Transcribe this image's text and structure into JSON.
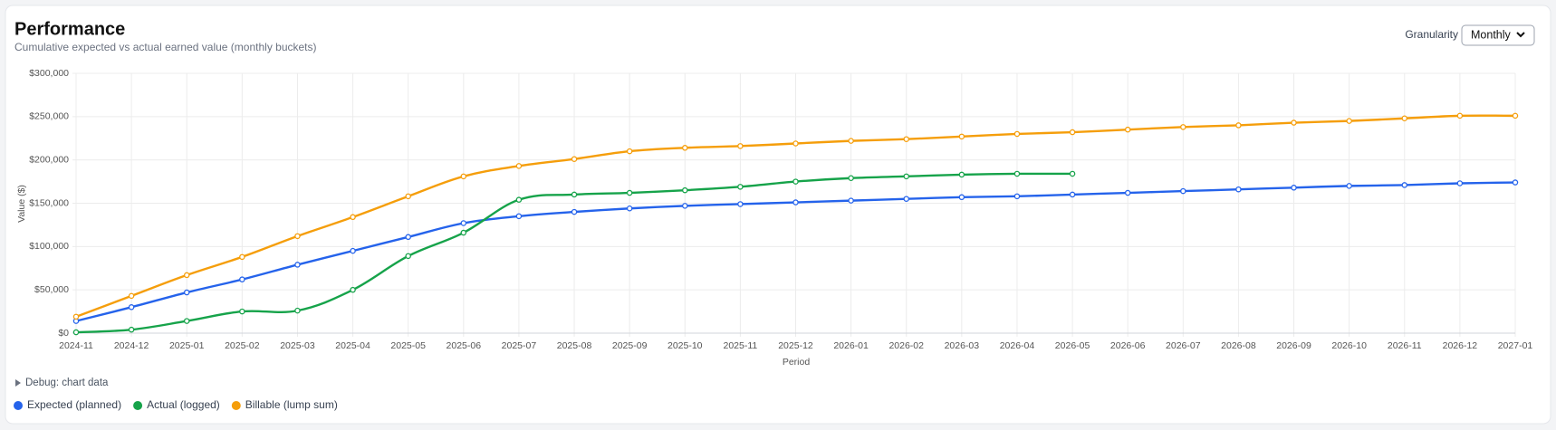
{
  "chart_data": {
    "type": "line",
    "title": "Performance",
    "subtitle": "Cumulative expected vs actual earned value (monthly buckets)",
    "x_label": "Period",
    "y_label": "Value ($)",
    "categories": [
      "2024-11",
      "2024-12",
      "2025-01",
      "2025-02",
      "2025-03",
      "2025-04",
      "2025-05",
      "2025-06",
      "2025-07",
      "2025-08",
      "2025-09",
      "2025-10",
      "2025-11",
      "2025-12",
      "2026-01",
      "2026-02",
      "2026-03",
      "2026-04",
      "2026-05",
      "2026-06",
      "2026-07",
      "2026-08",
      "2026-09",
      "2026-10",
      "2026-11",
      "2026-12",
      "2027-01"
    ],
    "series": [
      {
        "name": "Expected (planned)",
        "color": "#2563eb",
        "values": [
          14000,
          30000,
          47000,
          62000,
          79000,
          95000,
          111000,
          127000,
          135000,
          140000,
          144000,
          147000,
          149000,
          151000,
          153000,
          155000,
          157000,
          158000,
          160000,
          162000,
          164000,
          166000,
          168000,
          170000,
          171000,
          173000,
          174000
        ]
      },
      {
        "name": "Actual (logged)",
        "color": "#16a34a",
        "values": [
          1000,
          4000,
          14000,
          25000,
          26000,
          50000,
          89000,
          116000,
          154000,
          160000,
          162000,
          165000,
          169000,
          175000,
          179000,
          181000,
          183000,
          184000,
          184000,
          null,
          null,
          null,
          null,
          null,
          null,
          null,
          null
        ]
      },
      {
        "name": "Billable (lump sum)",
        "color": "#f59e0b",
        "values": [
          19000,
          43000,
          67000,
          88000,
          112000,
          134000,
          158000,
          181000,
          193000,
          201000,
          210000,
          214000,
          216000,
          219000,
          222000,
          224000,
          227000,
          230000,
          232000,
          235000,
          238000,
          240000,
          243000,
          245000,
          248000,
          251000,
          251000
        ]
      }
    ],
    "ylim": [
      0,
      300000
    ],
    "yticks": [
      {
        "value": 0,
        "label": "$0"
      },
      {
        "value": 50000,
        "label": "$50,000"
      },
      {
        "value": 100000,
        "label": "$100,000"
      },
      {
        "value": 150000,
        "label": "$150,000"
      },
      {
        "value": 200000,
        "label": "$200,000"
      },
      {
        "value": 250000,
        "label": "$250,000"
      },
      {
        "value": 300000,
        "label": "$300,000"
      }
    ],
    "grid": true,
    "legend": "bottom-left"
  },
  "controls": {
    "granularity_label": "Granularity",
    "granularity_value": "Monthly",
    "debug_label": "Debug: chart data"
  }
}
